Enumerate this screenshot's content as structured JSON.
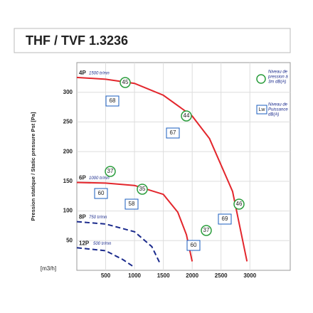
{
  "chart_data": {
    "type": "line",
    "title": "THF / TVF 1.3236",
    "ylabel": "Pression statique / Static pressure Pst [Pa]",
    "xlabel": "[m3/h]",
    "xlim": [
      0,
      3700
    ],
    "ylim": [
      0,
      350
    ],
    "xticks": [
      500,
      1000,
      1500,
      2000,
      2500,
      3000
    ],
    "yticks": [
      50,
      100,
      150,
      200,
      250,
      300
    ],
    "grid": true,
    "series": [
      {
        "name": "4P",
        "speed": "1500 tr/mn",
        "color": "#e3262c",
        "dash": false,
        "x": [
          0,
          500,
          1000,
          1500,
          2000,
          2300,
          2700,
          2950
        ],
        "values": [
          325,
          322,
          315,
          295,
          260,
          222,
          133,
          15
        ]
      },
      {
        "name": "6P",
        "speed": "1000 tr/mn",
        "color": "#e3262c",
        "dash": false,
        "x": [
          0,
          500,
          1000,
          1500,
          1750,
          1900,
          2000
        ],
        "values": [
          148,
          147,
          143,
          128,
          98,
          60,
          15
        ]
      },
      {
        "name": "8P",
        "speed": "750 tr/mn",
        "color": "#1a2a8c",
        "dash": true,
        "x": [
          0,
          500,
          1000,
          1300,
          1450
        ],
        "values": [
          82,
          78,
          65,
          40,
          10
        ]
      },
      {
        "name": "12P",
        "speed": "500 tr/mn",
        "color": "#1a2a8c",
        "dash": true,
        "x": [
          0,
          500,
          800,
          1000
        ],
        "values": [
          38,
          33,
          18,
          5
        ]
      }
    ],
    "pressure_levels": [
      "45",
      "44",
      "37",
      "35",
      "46",
      "37"
    ],
    "power_levels": [
      "68",
      "67",
      "60",
      "58",
      "69",
      "60"
    ],
    "legend": {
      "pressure": [
        "Niveau de",
        "pression à",
        "3m dB(A)"
      ],
      "power": [
        "Niveau de",
        "Puissance",
        "dB(A)"
      ],
      "power_icon": "Lw"
    }
  }
}
